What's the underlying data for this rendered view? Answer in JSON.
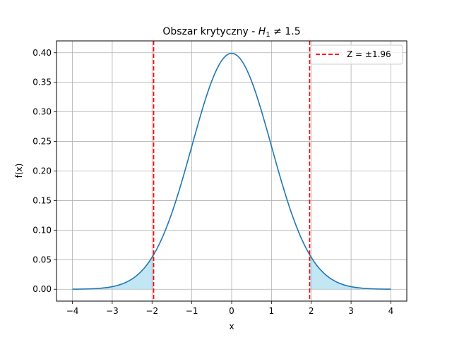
{
  "chart_data": {
    "type": "line",
    "title": "Obszar krytyczny - H₁ ≠ 1.5",
    "title_parts": {
      "prefix": "Obszar krytyczny - ",
      "var": "H",
      "sub": "1",
      "suffix": " ≠ 1.5"
    },
    "xlabel": "x",
    "ylabel": "f(x)",
    "xlim": [
      -4.4,
      4.4
    ],
    "ylim": [
      -0.02,
      0.42
    ],
    "xticks": [
      -4,
      -3,
      -2,
      -1,
      0,
      1,
      2,
      3,
      4
    ],
    "xtick_labels": [
      "−4",
      "−3",
      "−2",
      "−1",
      "0",
      "1",
      "2",
      "3",
      "4"
    ],
    "yticks": [
      0.0,
      0.05,
      0.1,
      0.15,
      0.2,
      0.25,
      0.3,
      0.35,
      0.4
    ],
    "ytick_labels": [
      "0.00",
      "0.05",
      "0.10",
      "0.15",
      "0.20",
      "0.25",
      "0.30",
      "0.35",
      "0.40"
    ],
    "grid": true,
    "series": [
      {
        "kind": "normal-pdf-curve",
        "color": "#1f77b4",
        "x": [
          -4.0,
          -3.5,
          -3.0,
          -2.5,
          -2.0,
          -1.96,
          -1.5,
          -1.0,
          -0.5,
          0.0,
          0.5,
          1.0,
          1.5,
          1.96,
          2.0,
          2.5,
          3.0,
          3.5,
          4.0
        ],
        "y": [
          0.0001,
          0.0009,
          0.0044,
          0.0175,
          0.054,
          0.0584,
          0.1295,
          0.242,
          0.3521,
          0.3989,
          0.3521,
          0.242,
          0.1295,
          0.0584,
          0.054,
          0.0175,
          0.0044,
          0.0009,
          0.0001
        ]
      }
    ],
    "shaded_regions": [
      {
        "from": -4.0,
        "to": -1.96,
        "color": "#87ceeb",
        "opacity": 0.5
      },
      {
        "from": 1.96,
        "to": 4.0,
        "color": "#87ceeb",
        "opacity": 0.5
      }
    ],
    "vlines": [
      {
        "x": -1.96,
        "color": "#ff0000",
        "style": "dashed"
      },
      {
        "x": 1.96,
        "color": "#ff0000",
        "style": "dashed"
      }
    ],
    "legend": {
      "placement": "top-right",
      "entries": [
        {
          "label": "Z = ±1.96",
          "color": "#ff0000",
          "style": "dashed"
        }
      ]
    }
  }
}
